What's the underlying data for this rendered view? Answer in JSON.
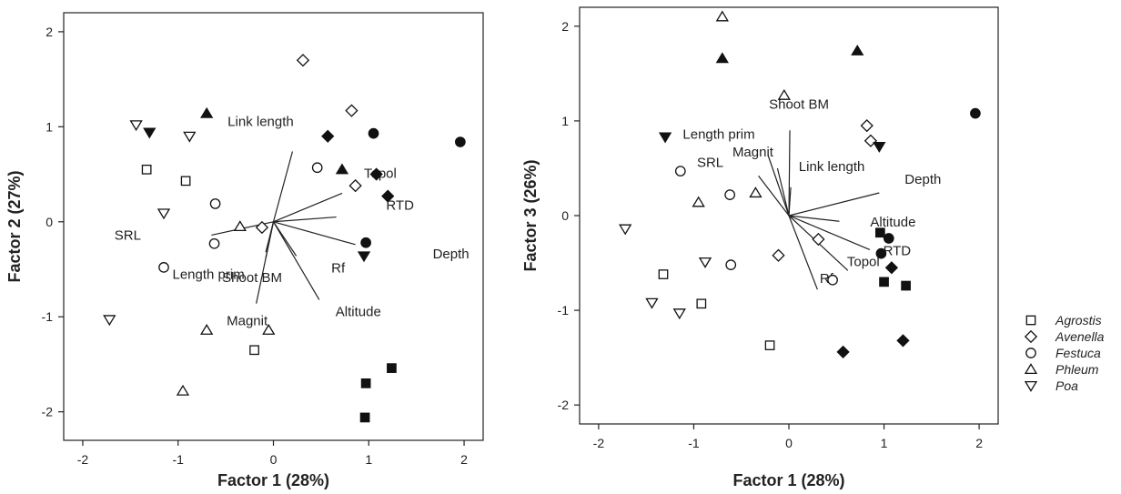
{
  "chart_data": [
    {
      "type": "scatter",
      "xlabel": "Factor 1 (28%)",
      "ylabel": "Factor 2 (27%)",
      "xlim": [
        -2.2,
        2.2
      ],
      "ylim": [
        -2.3,
        2.2
      ],
      "xticks": [
        -2,
        -1,
        0,
        1,
        2
      ],
      "yticks": [
        -2,
        -1,
        0,
        1,
        2
      ],
      "points": [
        {
          "x": -1.33,
          "y": 0.55,
          "species": "Agrostis",
          "filled": false
        },
        {
          "x": -0.92,
          "y": 0.43,
          "species": "Agrostis",
          "filled": false
        },
        {
          "x": -0.2,
          "y": -1.35,
          "species": "Agrostis",
          "filled": false
        },
        {
          "x": 0.97,
          "y": -1.7,
          "species": "Agrostis",
          "filled": true
        },
        {
          "x": 1.24,
          "y": -1.54,
          "species": "Agrostis",
          "filled": true
        },
        {
          "x": 0.96,
          "y": -2.06,
          "species": "Agrostis",
          "filled": true
        },
        {
          "x": 0.31,
          "y": 1.7,
          "species": "Avenella",
          "filled": false
        },
        {
          "x": 0.82,
          "y": 1.17,
          "species": "Avenella",
          "filled": false
        },
        {
          "x": 0.86,
          "y": 0.38,
          "species": "Avenella",
          "filled": false
        },
        {
          "x": -0.12,
          "y": -0.06,
          "species": "Avenella",
          "filled": false
        },
        {
          "x": 0.57,
          "y": 0.9,
          "species": "Avenella",
          "filled": true
        },
        {
          "x": 1.08,
          "y": 0.5,
          "species": "Avenella",
          "filled": true
        },
        {
          "x": 1.2,
          "y": 0.27,
          "species": "Avenella",
          "filled": true
        },
        {
          "x": 0.46,
          "y": 0.57,
          "species": "Festuca",
          "filled": false
        },
        {
          "x": -0.61,
          "y": 0.19,
          "species": "Festuca",
          "filled": false
        },
        {
          "x": -0.62,
          "y": -0.23,
          "species": "Festuca",
          "filled": false
        },
        {
          "x": -1.15,
          "y": -0.48,
          "species": "Festuca",
          "filled": false
        },
        {
          "x": 1.05,
          "y": 0.93,
          "species": "Festuca",
          "filled": true
        },
        {
          "x": 1.96,
          "y": 0.84,
          "species": "Festuca",
          "filled": true
        },
        {
          "x": 0.97,
          "y": -0.22,
          "species": "Festuca",
          "filled": true
        },
        {
          "x": -0.35,
          "y": -0.05,
          "species": "Phleum",
          "filled": false
        },
        {
          "x": -0.7,
          "y": -1.14,
          "species": "Phleum",
          "filled": false
        },
        {
          "x": -0.05,
          "y": -1.14,
          "species": "Phleum",
          "filled": false
        },
        {
          "x": -0.95,
          "y": -1.78,
          "species": "Phleum",
          "filled": false
        },
        {
          "x": -0.7,
          "y": 1.14,
          "species": "Phleum",
          "filled": true
        },
        {
          "x": 0.72,
          "y": 0.55,
          "species": "Phleum",
          "filled": true
        },
        {
          "x": -1.44,
          "y": 1.02,
          "species": "Poa",
          "filled": false
        },
        {
          "x": -0.88,
          "y": 0.9,
          "species": "Poa",
          "filled": false
        },
        {
          "x": -1.15,
          "y": 0.09,
          "species": "Poa",
          "filled": false
        },
        {
          "x": -1.72,
          "y": -1.03,
          "species": "Poa",
          "filled": false
        },
        {
          "x": -1.3,
          "y": 0.94,
          "species": "Poa",
          "filled": true
        },
        {
          "x": 0.95,
          "y": -0.36,
          "species": "Poa",
          "filled": true
        }
      ],
      "vectors": [
        {
          "label": "Link length",
          "x": 0.2,
          "y": 0.74
        },
        {
          "label": "Topol",
          "x": 0.72,
          "y": 0.3
        },
        {
          "label": "RTD",
          "x": 0.66,
          "y": 0.05
        },
        {
          "label": "Depth",
          "x": 0.86,
          "y": -0.24
        },
        {
          "label": "Altitude",
          "x": 0.48,
          "y": -0.82
        },
        {
          "label": "Rf",
          "x": 0.24,
          "y": -0.36
        },
        {
          "label": "Shoot BM",
          "x": -0.08,
          "y": -0.32
        },
        {
          "label": "Magnit",
          "x": -0.18,
          "y": -0.86
        },
        {
          "label": "Length prim",
          "x": -0.08,
          "y": -0.38
        },
        {
          "label": "SRL",
          "x": -0.65,
          "y": -0.14
        }
      ]
    },
    {
      "type": "scatter",
      "xlabel": "Factor 1 (28%)",
      "ylabel": "Factor 3 (26%)",
      "xlim": [
        -2.2,
        2.2
      ],
      "ylim": [
        -2.2,
        2.2
      ],
      "xticks": [
        -2,
        -1,
        0,
        1,
        2
      ],
      "yticks": [
        -2,
        -1,
        0,
        1,
        2
      ],
      "points": [
        {
          "x": -1.32,
          "y": -0.62,
          "species": "Agrostis",
          "filled": false
        },
        {
          "x": -0.92,
          "y": -0.93,
          "species": "Agrostis",
          "filled": false
        },
        {
          "x": -0.2,
          "y": -1.37,
          "species": "Agrostis",
          "filled": false
        },
        {
          "x": 0.96,
          "y": -0.18,
          "species": "Agrostis",
          "filled": true
        },
        {
          "x": 1.0,
          "y": -0.7,
          "species": "Agrostis",
          "filled": true
        },
        {
          "x": 1.23,
          "y": -0.74,
          "species": "Agrostis",
          "filled": true
        },
        {
          "x": 0.82,
          "y": 0.95,
          "species": "Avenella",
          "filled": false
        },
        {
          "x": 0.86,
          "y": 0.79,
          "species": "Avenella",
          "filled": false
        },
        {
          "x": 0.31,
          "y": -0.25,
          "species": "Avenella",
          "filled": false
        },
        {
          "x": -0.11,
          "y": -0.42,
          "species": "Avenella",
          "filled": false
        },
        {
          "x": 0.57,
          "y": -1.44,
          "species": "Avenella",
          "filled": true
        },
        {
          "x": 1.08,
          "y": -0.55,
          "species": "Avenella",
          "filled": true
        },
        {
          "x": 1.2,
          "y": -1.32,
          "species": "Avenella",
          "filled": true
        },
        {
          "x": -1.14,
          "y": 0.47,
          "species": "Festuca",
          "filled": false
        },
        {
          "x": -0.62,
          "y": 0.22,
          "species": "Festuca",
          "filled": false
        },
        {
          "x": -0.61,
          "y": -0.52,
          "species": "Festuca",
          "filled": false
        },
        {
          "x": 0.46,
          "y": -0.68,
          "species": "Festuca",
          "filled": false
        },
        {
          "x": 1.96,
          "y": 1.08,
          "species": "Festuca",
          "filled": true
        },
        {
          "x": 1.05,
          "y": -0.24,
          "species": "Festuca",
          "filled": true
        },
        {
          "x": 0.97,
          "y": -0.4,
          "species": "Festuca",
          "filled": true
        },
        {
          "x": -0.7,
          "y": 2.1,
          "species": "Phleum",
          "filled": false
        },
        {
          "x": -0.05,
          "y": 1.27,
          "species": "Phleum",
          "filled": false
        },
        {
          "x": -0.35,
          "y": 0.24,
          "species": "Phleum",
          "filled": false
        },
        {
          "x": -0.95,
          "y": 0.14,
          "species": "Phleum",
          "filled": false
        },
        {
          "x": -0.7,
          "y": 1.66,
          "species": "Phleum",
          "filled": true
        },
        {
          "x": 0.72,
          "y": 1.74,
          "species": "Phleum",
          "filled": true
        },
        {
          "x": -1.72,
          "y": -0.14,
          "species": "Poa",
          "filled": false
        },
        {
          "x": -1.44,
          "y": -0.92,
          "species": "Poa",
          "filled": false
        },
        {
          "x": -1.15,
          "y": -1.03,
          "species": "Poa",
          "filled": false
        },
        {
          "x": -0.88,
          "y": -0.49,
          "species": "Poa",
          "filled": false
        },
        {
          "x": -1.3,
          "y": 0.83,
          "species": "Poa",
          "filled": true
        },
        {
          "x": 0.95,
          "y": 0.73,
          "species": "Poa",
          "filled": true
        }
      ],
      "vectors": [
        {
          "label": "Shoot BM",
          "x": 0.01,
          "y": 0.9
        },
        {
          "label": "Length prim",
          "x": -0.22,
          "y": 0.64
        },
        {
          "label": "Magnit",
          "x": -0.12,
          "y": 0.5
        },
        {
          "label": "SRL",
          "x": -0.32,
          "y": 0.42
        },
        {
          "label": "Link length",
          "x": 0.02,
          "y": 0.3
        },
        {
          "label": "Depth",
          "x": 0.95,
          "y": 0.24
        },
        {
          "label": "Altitude",
          "x": 0.53,
          "y": -0.06
        },
        {
          "label": "RTD",
          "x": 0.85,
          "y": -0.36
        },
        {
          "label": "Topol",
          "x": 0.62,
          "y": -0.58
        },
        {
          "label": "Rf",
          "x": 0.3,
          "y": -0.78
        }
      ]
    }
  ],
  "legend": {
    "placement": "right",
    "items": [
      {
        "label": "Agrostis",
        "marker": "square"
      },
      {
        "label": "Avenella",
        "marker": "diamond"
      },
      {
        "label": "Festuca",
        "marker": "circle"
      },
      {
        "label": "Phleum",
        "marker": "triangle-up"
      },
      {
        "label": "Poa",
        "marker": "triangle-down"
      }
    ]
  }
}
